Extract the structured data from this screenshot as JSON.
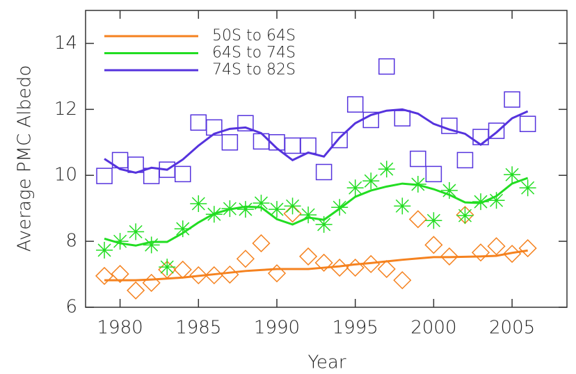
{
  "chart_data": {
    "type": "line",
    "x_label": "Year",
    "y_label": "Average PMC Albedo",
    "xlim": [
      1977.8,
      2008.5
    ],
    "ylim": [
      6,
      15
    ],
    "xticks": [
      1980,
      1985,
      1990,
      1995,
      2000,
      2005
    ],
    "yticks": [
      6,
      8,
      10,
      12,
      14
    ],
    "legend": "upper left",
    "x": [
      1979,
      1980,
      1981,
      1982,
      1983,
      1984,
      1985,
      1986,
      1987,
      1988,
      1989,
      1990,
      1991,
      1992,
      1993,
      1994,
      1995,
      1996,
      1997,
      1998,
      1999,
      2000,
      2001,
      2002,
      2003,
      2004,
      2005,
      2006
    ],
    "series": [
      {
        "name": "50S to 64S",
        "color": "#f5821f",
        "marker": "diamond",
        "values": [
          6.82,
          6.82,
          6.82,
          6.84,
          6.87,
          6.9,
          6.95,
          7.0,
          7.05,
          7.1,
          7.13,
          7.16,
          7.16,
          7.16,
          7.2,
          7.24,
          7.3,
          7.34,
          7.39,
          7.44,
          7.48,
          7.52,
          7.52,
          7.53,
          7.54,
          7.56,
          7.65,
          7.72
        ],
        "markers": [
          6.95,
          7.01,
          6.51,
          6.74,
          7.14,
          7.14,
          6.97,
          6.97,
          6.99,
          7.47,
          7.94,
          7.03,
          8.84,
          7.54,
          7.35,
          7.2,
          7.2,
          7.31,
          7.16,
          6.82,
          8.67,
          7.89,
          7.54,
          8.8,
          7.66,
          7.85,
          7.62,
          7.79
        ]
      },
      {
        "name": "64S to 74S",
        "color": "#22dd22",
        "marker": "star",
        "values": [
          8.08,
          7.94,
          7.87,
          7.98,
          7.98,
          8.25,
          8.57,
          8.84,
          8.97,
          9.05,
          9.03,
          8.67,
          8.51,
          8.72,
          8.65,
          8.99,
          9.35,
          9.54,
          9.66,
          9.75,
          9.71,
          9.58,
          9.41,
          9.18,
          9.16,
          9.37,
          9.75,
          9.92
        ],
        "markers": [
          7.73,
          8.0,
          8.29,
          7.89,
          7.22,
          8.38,
          9.14,
          8.82,
          8.99,
          8.97,
          9.16,
          8.97,
          9.07,
          8.8,
          8.51,
          9.03,
          9.62,
          9.83,
          10.19,
          9.07,
          9.73,
          8.63,
          9.54,
          8.78,
          9.2,
          9.24,
          10.02,
          9.62
        ]
      },
      {
        "name": "74S to 82S",
        "color": "#5533dd",
        "marker": "square",
        "values": [
          10.5,
          10.19,
          10.08,
          10.23,
          10.17,
          10.48,
          10.9,
          11.26,
          11.41,
          11.45,
          11.28,
          10.82,
          10.46,
          10.69,
          10.57,
          11.14,
          11.58,
          11.83,
          11.96,
          12.0,
          11.87,
          11.56,
          11.39,
          11.26,
          10.93,
          11.3,
          11.73,
          11.94
        ],
        "markers": [
          9.98,
          10.46,
          10.32,
          9.98,
          10.17,
          10.04,
          11.6,
          11.45,
          11.0,
          11.58,
          11.03,
          11.0,
          10.9,
          10.9,
          10.1,
          11.07,
          12.15,
          11.68,
          13.3,
          11.73,
          10.5,
          10.04,
          11.5,
          10.46,
          11.16,
          11.35,
          12.3,
          11.56
        ]
      }
    ]
  }
}
